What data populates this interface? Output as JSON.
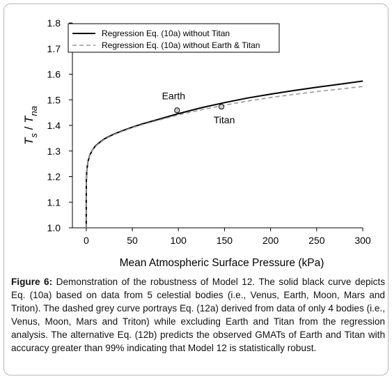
{
  "chart_data": {
    "type": "line",
    "xlabel": "Mean Atmospheric Surface Pressure (kPa)",
    "ylabel_main": "T",
    "ylabel_sub1": "s",
    "ylabel_sep": " / ",
    "ylabel_sub2": "na",
    "xlim": [
      -15,
      300
    ],
    "ylim": [
      1.0,
      1.8
    ],
    "xticks": [
      0,
      50,
      100,
      150,
      200,
      250,
      300
    ],
    "yticks": [
      1.0,
      1.1,
      1.2,
      1.3,
      1.4,
      1.5,
      1.6,
      1.7,
      1.8
    ],
    "ytick_labels": [
      "1.0",
      "1.1",
      "1.2",
      "1.3",
      "1.4",
      "1.5",
      "1.6",
      "1.7",
      "1.8"
    ],
    "grid": false,
    "legend_position": "top-right",
    "series": [
      {
        "name": "Regression Eq. (10a) without Titan",
        "style": "solid",
        "color": "#000000",
        "x": [
          0,
          0.01,
          0.1,
          0.5,
          1,
          2,
          4,
          7,
          10,
          15,
          20,
          30,
          40,
          50,
          60,
          75,
          100,
          125,
          150,
          175,
          200,
          225,
          250,
          275,
          300
        ],
        "y": [
          1.0,
          1.1,
          1.18,
          1.215,
          1.235,
          1.26,
          1.285,
          1.305,
          1.32,
          1.335,
          1.348,
          1.366,
          1.38,
          1.393,
          1.405,
          1.42,
          1.446,
          1.469,
          1.489,
          1.507,
          1.522,
          1.536,
          1.549,
          1.561,
          1.573
        ]
      },
      {
        "name": "Regression Eq. (10a) without Earth & Titan",
        "style": "dashed",
        "color": "#999999",
        "x": [
          0,
          0.01,
          0.1,
          0.5,
          1,
          2,
          4,
          7,
          10,
          15,
          20,
          30,
          40,
          50,
          60,
          75,
          100,
          125,
          150,
          175,
          200,
          225,
          250,
          275,
          300
        ],
        "y": [
          1.0,
          1.1,
          1.18,
          1.214,
          1.234,
          1.259,
          1.284,
          1.304,
          1.318,
          1.333,
          1.346,
          1.364,
          1.378,
          1.391,
          1.402,
          1.417,
          1.441,
          1.461,
          1.479,
          1.495,
          1.509,
          1.521,
          1.532,
          1.542,
          1.552
        ]
      }
    ],
    "points": [
      {
        "name": "Earth",
        "x": 98.55,
        "y": 1.459,
        "label_position": "above"
      },
      {
        "name": "Titan",
        "x": 146.7,
        "y": 1.473,
        "label_position": "below"
      }
    ],
    "colors": {
      "axis": "#000000",
      "marker_fill": "#cccccc",
      "frame_border": "#b9b9b9"
    }
  },
  "caption": {
    "label": "Figure 6:",
    "text": " Demonstration of the robustness of Model 12. The solid black curve depicts Eq. (10a) based on data from 5 celestial bodies (i.e., Venus, Earth, Moon, Mars and Triton). The dashed grey curve portrays Eq. (12a) derived from data of only 4 bodies (i.e., Venus, Moon, Mars and Triton) while excluding Earth and Titan from the regression analysis. The alternative Eq. (12b) predicts the observed GMATs of Earth and Titan with accuracy greater than 99% indicating that Model 12 is statistically robust."
  }
}
